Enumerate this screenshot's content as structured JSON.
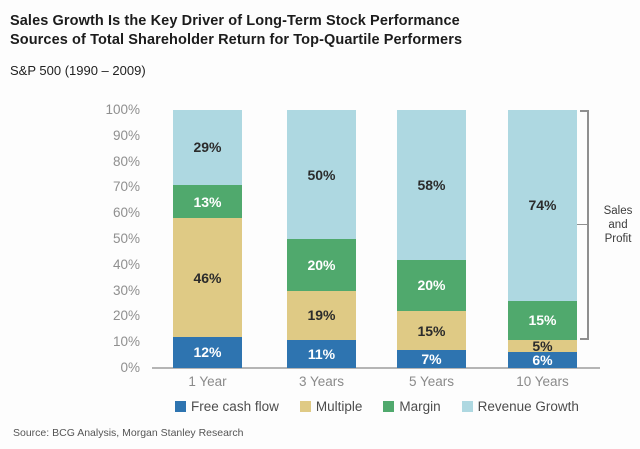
{
  "header": {
    "title_line1": "Sales Growth Is the Key Driver of Long-Term Stock Performance",
    "title_line2": "Sources of Total Shareholder Return for Top-Quartile Performers",
    "subtitle": "S&P 500 (1990 – 2009)"
  },
  "chart_data": {
    "type": "bar",
    "stacked": true,
    "title": "Sources of Total Shareholder Return for Top-Quartile Performers",
    "categories": [
      "1 Year",
      "3 Years",
      "5 Years",
      "10 Years"
    ],
    "series": [
      {
        "name": "Free cash flow",
        "color": "#2e74b0",
        "label_color": "#ffffff",
        "values": [
          12,
          11,
          7,
          6
        ]
      },
      {
        "name": "Multiple",
        "color": "#dfca85",
        "label_color": "#2b2b2b",
        "values": [
          46,
          19,
          15,
          5
        ]
      },
      {
        "name": "Margin",
        "color": "#50a96d",
        "label_color": "#ffffff",
        "values": [
          13,
          20,
          20,
          15
        ]
      },
      {
        "name": "Revenue Growth",
        "color": "#aed8e1",
        "label_color": "#2b2b2b",
        "values": [
          29,
          50,
          58,
          74
        ]
      }
    ],
    "y_axis": {
      "min": 0,
      "max": 100,
      "tick_step": 10,
      "tick_labels": [
        "100%",
        "90%",
        "80%",
        "70%",
        "60%",
        "50%",
        "40%",
        "30%",
        "20%",
        "10%",
        "0%"
      ]
    },
    "value_label_suffix": "%",
    "grid": false,
    "legend_position": "bottom",
    "annotation": {
      "label": "Sales and Profit",
      "lines": [
        "Sales",
        "and",
        "Profit"
      ],
      "applies_to_category": "10 Years",
      "span_from_percent": 11,
      "span_to_percent": 100
    }
  },
  "source": "Source: BCG Analysis, Morgan Stanley Research"
}
